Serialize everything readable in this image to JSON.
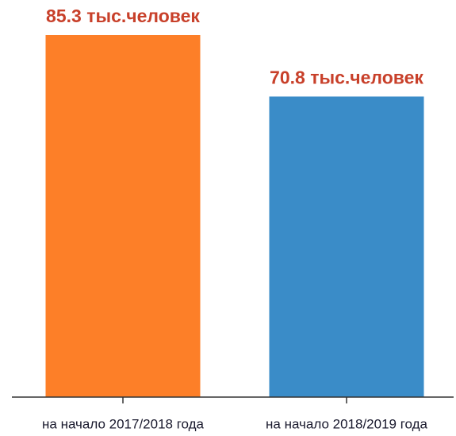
{
  "chart_data": {
    "type": "bar",
    "categories": [
      "на начало 2017/2018 года",
      "на начало 2018/2019 года"
    ],
    "values": [
      85.3,
      70.8
    ],
    "value_labels": [
      "85.3 тыс.человек",
      "70.8 тыс.человек"
    ],
    "colors": [
      "#fd7f28",
      "#3a8cc8"
    ]
  }
}
